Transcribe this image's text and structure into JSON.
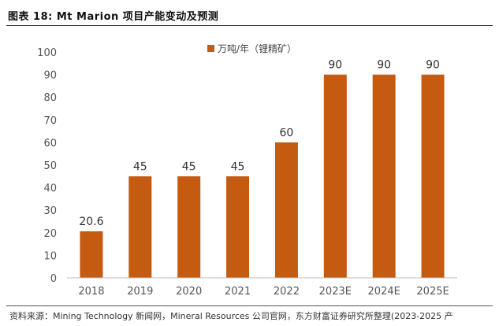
{
  "figure": {
    "title": "图表 18: Mt Marion 项目产能变动及预测",
    "source": "资料来源：Mining Technology 新闻网，Mineral Resources 公司官网，东方财富证券研究所整理(2023-2025 产"
  },
  "colors": {
    "bar": "#C55A11",
    "axis": "#bfbfbf",
    "text": "#595959"
  },
  "chart_data": {
    "type": "bar",
    "title": "",
    "xlabel": "",
    "ylabel": "",
    "categories": [
      "2018",
      "2019",
      "2020",
      "2021",
      "2022",
      "2023E",
      "2024E",
      "2025E"
    ],
    "series": [
      {
        "name": "万吨/年（锂精矿）",
        "values": [
          20.6,
          45,
          45,
          45,
          60,
          90,
          90,
          90
        ]
      }
    ],
    "data_labels": [
      "20.6",
      "45",
      "45",
      "45",
      "60",
      "90",
      "90",
      "90"
    ],
    "ylim": [
      0,
      100
    ],
    "yticks": [
      "0",
      "10",
      "20",
      "30",
      "40",
      "50",
      "60",
      "70",
      "80",
      "90",
      "100"
    ],
    "grid": false,
    "legend_position": "top-center"
  }
}
